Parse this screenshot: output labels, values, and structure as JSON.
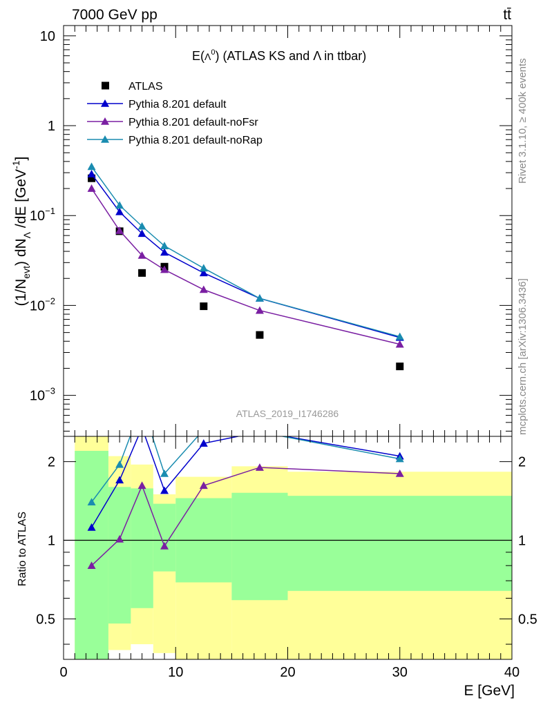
{
  "header": {
    "left": "7000 GeV pp",
    "right": "tt̄"
  },
  "side_labels": {
    "rivet": "Rivet 3.1.10, ≥ 400k events",
    "mcplots": "mcplots.cern.ch [arXiv:1306.3436]"
  },
  "chart_data": [
    {
      "type": "line",
      "title": "E(Λ⁰) (ATLAS KS and Λ in ttbar)",
      "title_parts": {
        "a": "E(",
        "b": "Λ",
        "c": "0",
        "d": ")  (ATLAS KS and Λ in ttbar)"
      },
      "analysis_id": "ATLAS_2019_I1746286",
      "ylabel": "(1/N_evt) dN_Λ/dE [GeV^-1]",
      "ylabel_parts": {
        "a": "(1/N",
        "b": "evt",
        "c": ") dN",
        "d": "Λ",
        "e": " /dE [GeV",
        "f": "-1",
        "g": "]"
      },
      "yscale": "log",
      "ylim": [
        0.00035,
        13
      ],
      "xlim": [
        0,
        40
      ],
      "y_ticks": [
        {
          "value": 10,
          "label": "10"
        },
        {
          "value": 1,
          "label": "1"
        },
        {
          "value": 0.1,
          "label": "10",
          "exp": "−1"
        },
        {
          "value": 0.01,
          "label": "10",
          "exp": "−2"
        },
        {
          "value": 0.001,
          "label": "10",
          "exp": "−3"
        }
      ],
      "legend_position": "top-left",
      "x": [
        2.5,
        5,
        7,
        9,
        12.5,
        17.5,
        30
      ],
      "series": [
        {
          "name": "ATLAS",
          "color": "#000000",
          "marker": "square",
          "values": [
            0.26,
            0.067,
            0.023,
            0.027,
            0.0098,
            0.0047,
            0.0021
          ]
        },
        {
          "name": "Pythia 8.201 default",
          "color": "#0000cc",
          "marker": "triangle",
          "values": [
            0.29,
            0.11,
            0.063,
            0.039,
            0.023,
            0.012,
            0.0044
          ]
        },
        {
          "name": "Pythia 8.201 default-noFsr",
          "color": "#7a1fa2",
          "marker": "triangle",
          "values": [
            0.2,
            0.068,
            0.036,
            0.025,
            0.015,
            0.0088,
            0.0037
          ]
        },
        {
          "name": "Pythia 8.201 default-noRap",
          "color": "#1a8cb0",
          "marker": "triangle",
          "values": [
            0.35,
            0.13,
            0.076,
            0.046,
            0.026,
            0.012,
            0.0045
          ]
        }
      ]
    },
    {
      "type": "line",
      "ylabel": "Ratio to ATLAS",
      "xlabel": "E [GeV]",
      "yscale": "log",
      "ylim": [
        0.35,
        2.5
      ],
      "xlim": [
        0,
        40
      ],
      "x_ticks": [
        0,
        10,
        20,
        30,
        40
      ],
      "y_ticks": [
        {
          "value": 2,
          "label": "2"
        },
        {
          "value": 1,
          "label": "1"
        },
        {
          "value": 0.5,
          "label": "0.5"
        }
      ],
      "reference_line": 1,
      "uncertainty_bands": [
        {
          "x0": 1,
          "x1": 4,
          "yellow": [
            0.35,
            2.5
          ],
          "green": [
            0.35,
            2.2
          ]
        },
        {
          "x0": 4,
          "x1": 6,
          "yellow": [
            0.38,
            2.1
          ],
          "green": [
            0.48,
            1.6
          ]
        },
        {
          "x0": 6,
          "x1": 8,
          "yellow": [
            0.4,
            1.95
          ],
          "green": [
            0.55,
            1.58
          ]
        },
        {
          "x0": 8,
          "x1": 10,
          "yellow": [
            0.37,
            1.5
          ],
          "green": [
            0.76,
            1.38
          ]
        },
        {
          "x0": 10,
          "x1": 15,
          "yellow": [
            0.35,
            1.75
          ],
          "green": [
            0.69,
            1.45
          ]
        },
        {
          "x0": 15,
          "x1": 20,
          "yellow": [
            0.35,
            1.92
          ],
          "green": [
            0.59,
            1.52
          ]
        },
        {
          "x0": 20,
          "x1": 40,
          "yellow": [
            0.35,
            1.83
          ],
          "green": [
            0.64,
            1.48
          ]
        }
      ],
      "x": [
        2.5,
        5,
        7,
        9,
        12.5,
        17.5,
        30
      ],
      "series": [
        {
          "name": "Pythia 8.201 default",
          "color": "#0000cc",
          "values": [
            1.12,
            1.7,
            2.7,
            1.55,
            2.35,
            2.6,
            2.1
          ]
        },
        {
          "name": "Pythia 8.201 default-noFsr",
          "color": "#7a1fa2",
          "values": [
            0.8,
            1.01,
            1.62,
            0.95,
            1.62,
            1.9,
            1.8
          ]
        },
        {
          "name": "Pythia 8.201 default-noRap",
          "color": "#1a8cb0",
          "values": [
            1.4,
            1.95,
            3.3,
            1.8,
            2.65,
            2.6,
            2.05
          ]
        }
      ]
    }
  ]
}
